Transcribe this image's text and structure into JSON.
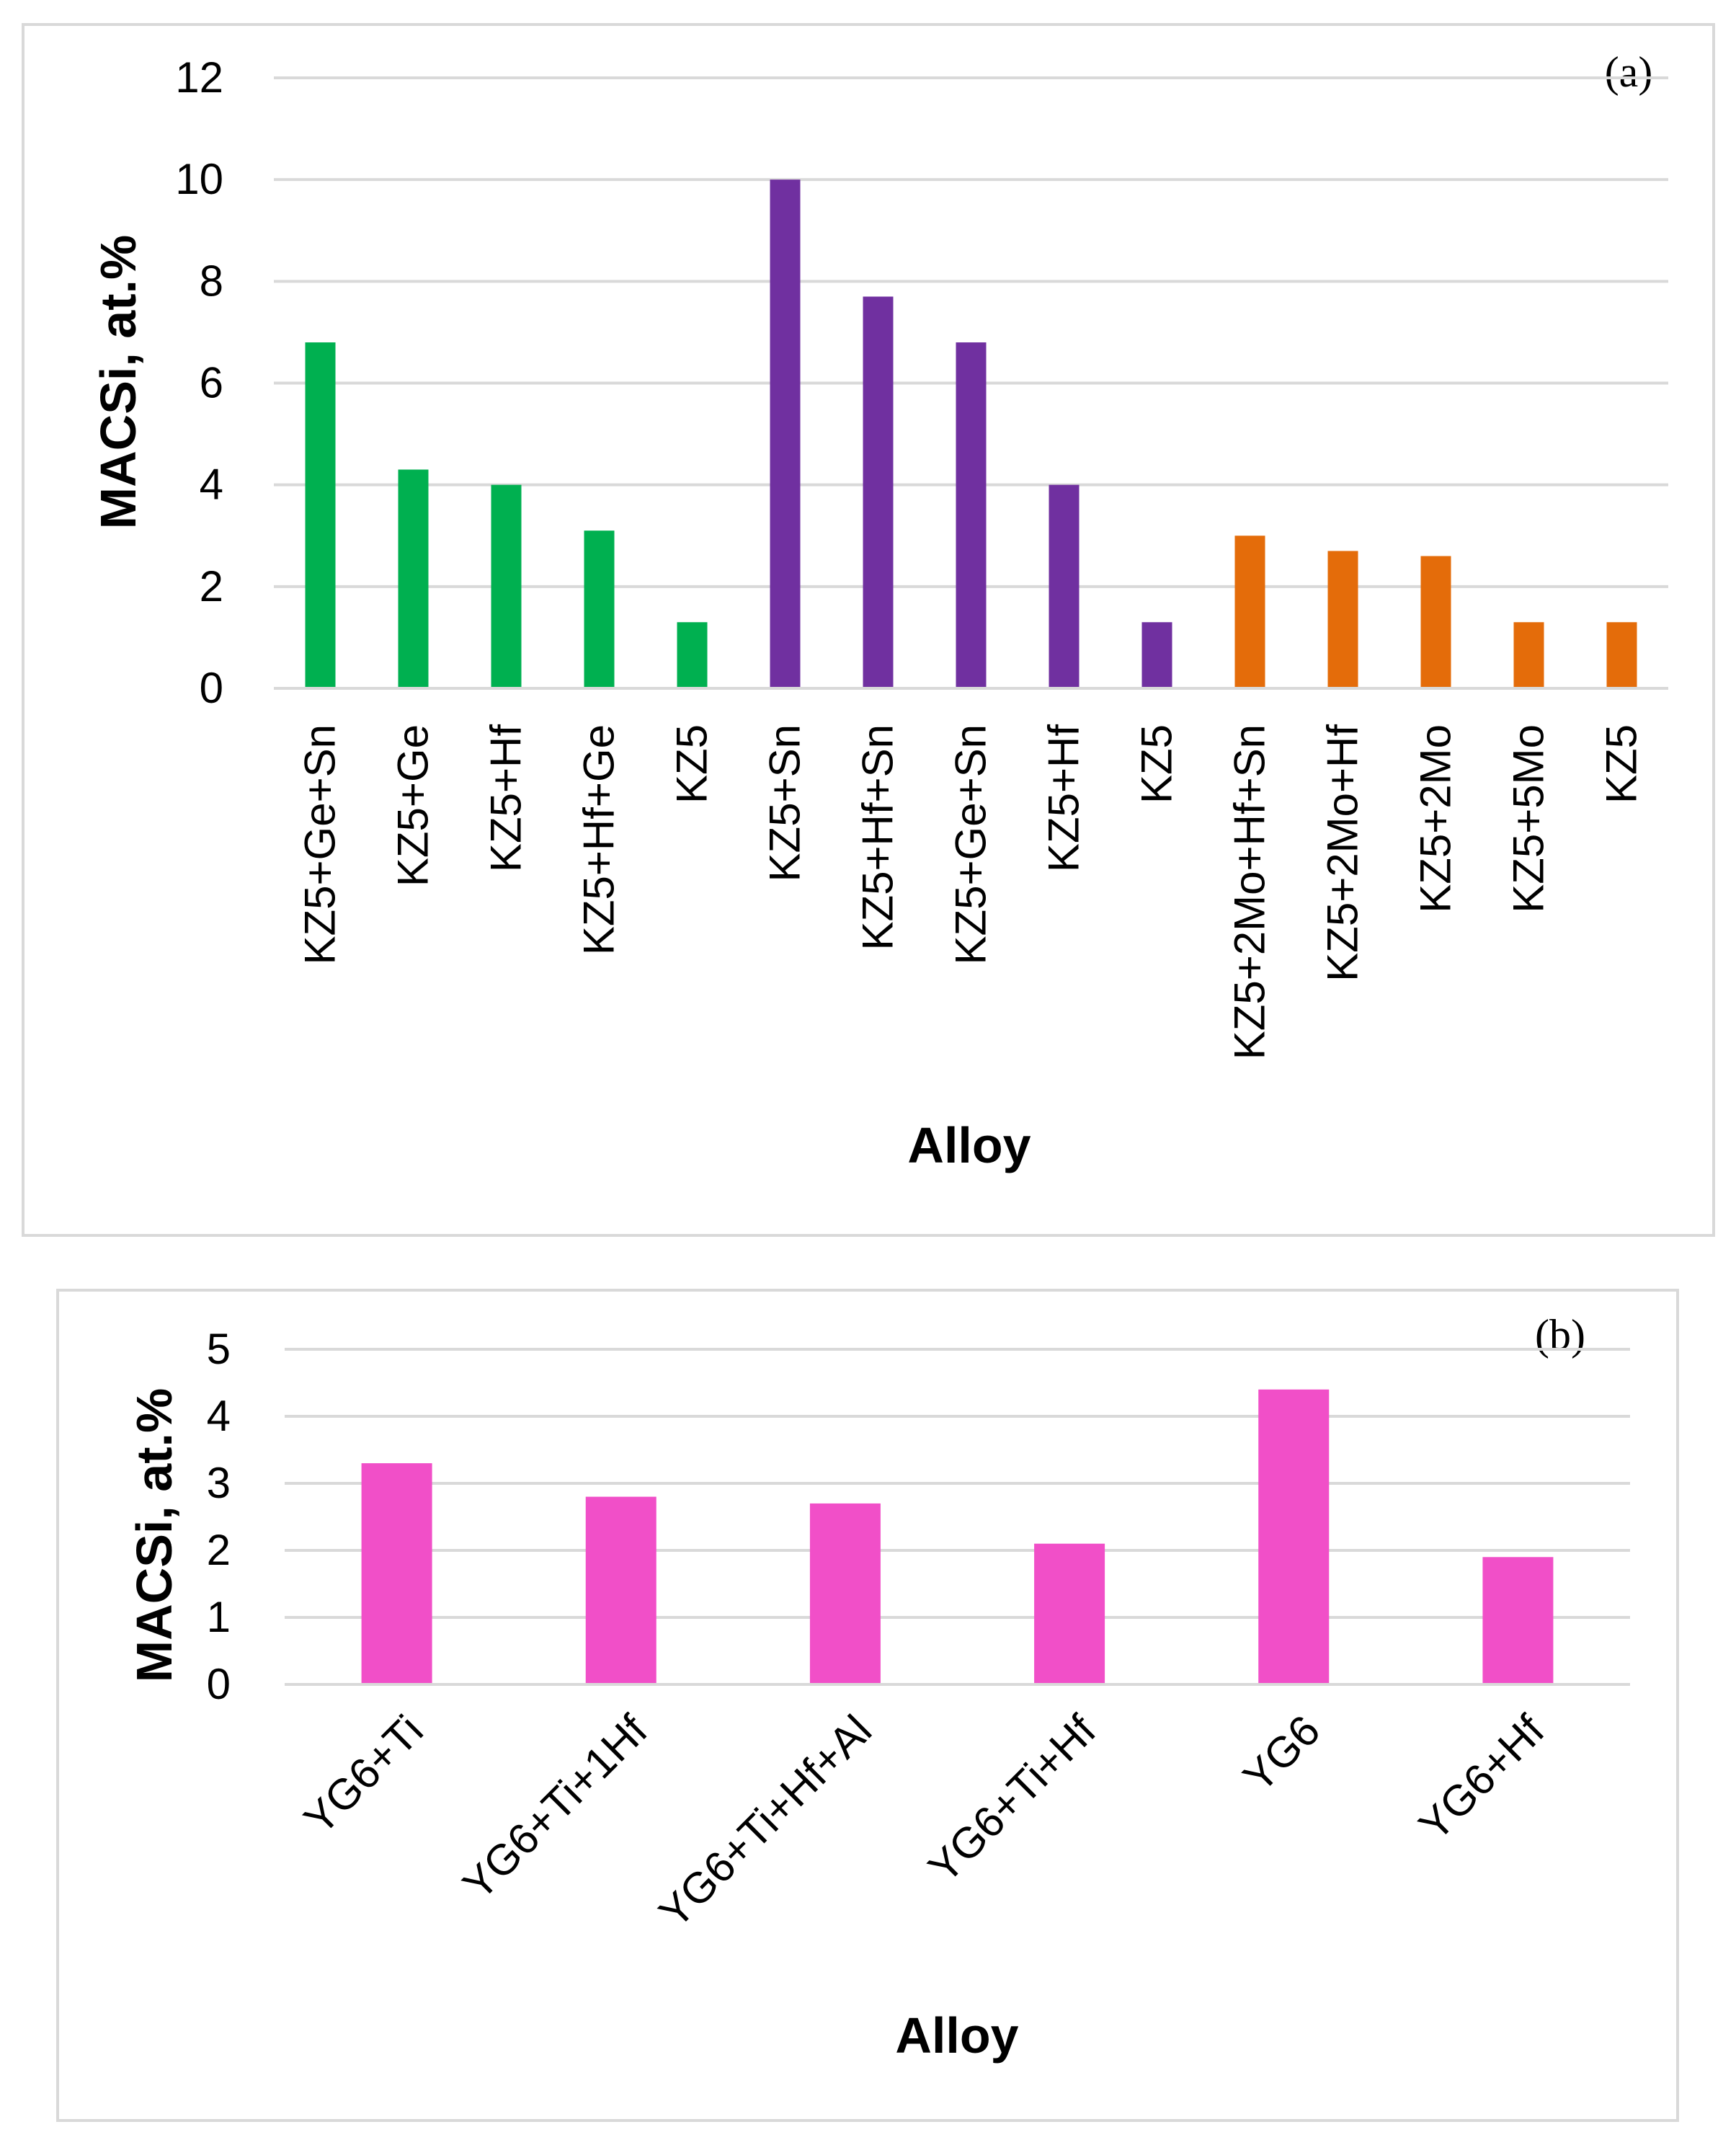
{
  "chart_data": [
    {
      "type": "bar",
      "panel_label": "(a)",
      "xlabel": "Alloy",
      "ylabel": "MACSi, at.%",
      "ylim": [
        0,
        12
      ],
      "yticks": [
        0,
        2,
        4,
        6,
        8,
        10,
        12
      ],
      "tick_rotation": -90,
      "grid": true,
      "categories": [
        "KZ5+Ge+Sn",
        "KZ5+Ge",
        "KZ5+Hf",
        "KZ5+Hf+Ge",
        "KZ5",
        "KZ5+Sn",
        "KZ5+Hf+Sn",
        "KZ5+Ge+Sn",
        "KZ5+Hf",
        "KZ5",
        "KZ5+2Mo+Hf+Sn",
        "KZ5+2Mo+Hf",
        "KZ5+2Mo",
        "KZ5+5Mo",
        "KZ5"
      ],
      "values": [
        6.8,
        4.3,
        4.0,
        3.1,
        1.3,
        10.0,
        7.7,
        6.8,
        4.0,
        1.3,
        3.0,
        2.7,
        2.6,
        1.3,
        1.3
      ],
      "colors": [
        "#00b050",
        "#00b050",
        "#00b050",
        "#00b050",
        "#00b050",
        "#7030a0",
        "#7030a0",
        "#7030a0",
        "#7030a0",
        "#7030a0",
        "#e46c0a",
        "#e46c0a",
        "#e46c0a",
        "#e46c0a",
        "#e46c0a"
      ]
    },
    {
      "type": "bar",
      "panel_label": "(b)",
      "xlabel": "Alloy",
      "ylabel": "MACSi, at.%",
      "ylim": [
        0,
        5
      ],
      "yticks": [
        0,
        1,
        2,
        3,
        4,
        5
      ],
      "tick_rotation": -45,
      "grid": true,
      "categories": [
        "YG6+Ti",
        "YG6+Ti+1Hf",
        "YG6+Ti+Hf+Al",
        "YG6+Ti+Hf",
        "YG6",
        "YG6+Hf"
      ],
      "values": [
        3.3,
        2.8,
        2.7,
        2.1,
        4.4,
        1.9
      ],
      "colors": [
        "#f14fc8",
        "#f14fc8",
        "#f14fc8",
        "#f14fc8",
        "#f14fc8",
        "#f14fc8"
      ]
    }
  ]
}
